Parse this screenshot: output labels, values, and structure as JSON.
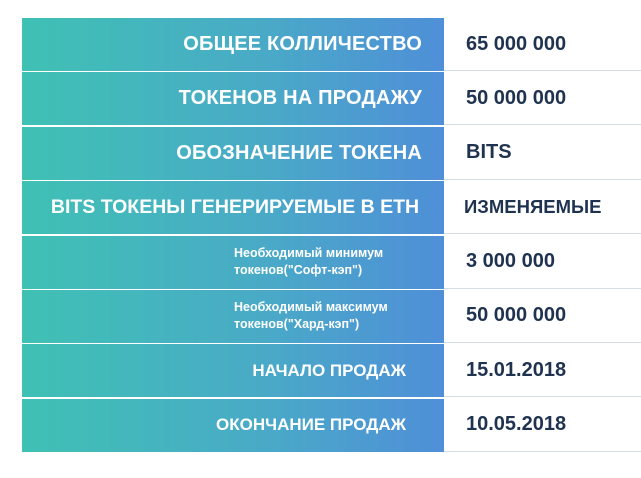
{
  "rows": [
    {
      "label": "ОБЩЕЕ КОЛЛИЧЕСТВО",
      "value": "65 000 000"
    },
    {
      "label": "ТОКЕНОВ НА ПРОДАЖУ",
      "value": "50 000 000"
    },
    {
      "label": "ОБОЗНАЧЕНИЕ ТОКЕНА",
      "value": "BITS"
    },
    {
      "label": "BITS ТОКЕНЫ ГЕНЕРИРУЕМЫЕ В ETH",
      "value": "ИЗМЕНЯЕМЫЕ"
    },
    {
      "label_line1": "Необходимый минимум",
      "label_line2": "токенов(\"Софт-кэп\")",
      "value": "3 000 000"
    },
    {
      "label_line1": "Необходимый максимум",
      "label_line2": "токенов(\"Хард-кэп\")",
      "value": "50 000 000"
    },
    {
      "label": "НАЧАЛО ПРОДАЖ",
      "value": "15.01.2018"
    },
    {
      "label": "ОКОНЧАНИЕ ПРОДАЖ",
      "value": "10.05.2018"
    }
  ],
  "colors": {
    "gradient_start": "#3fc1b4",
    "gradient_end": "#4f8fd8",
    "value_text": "#1f3350",
    "label_text": "#ffffff"
  }
}
